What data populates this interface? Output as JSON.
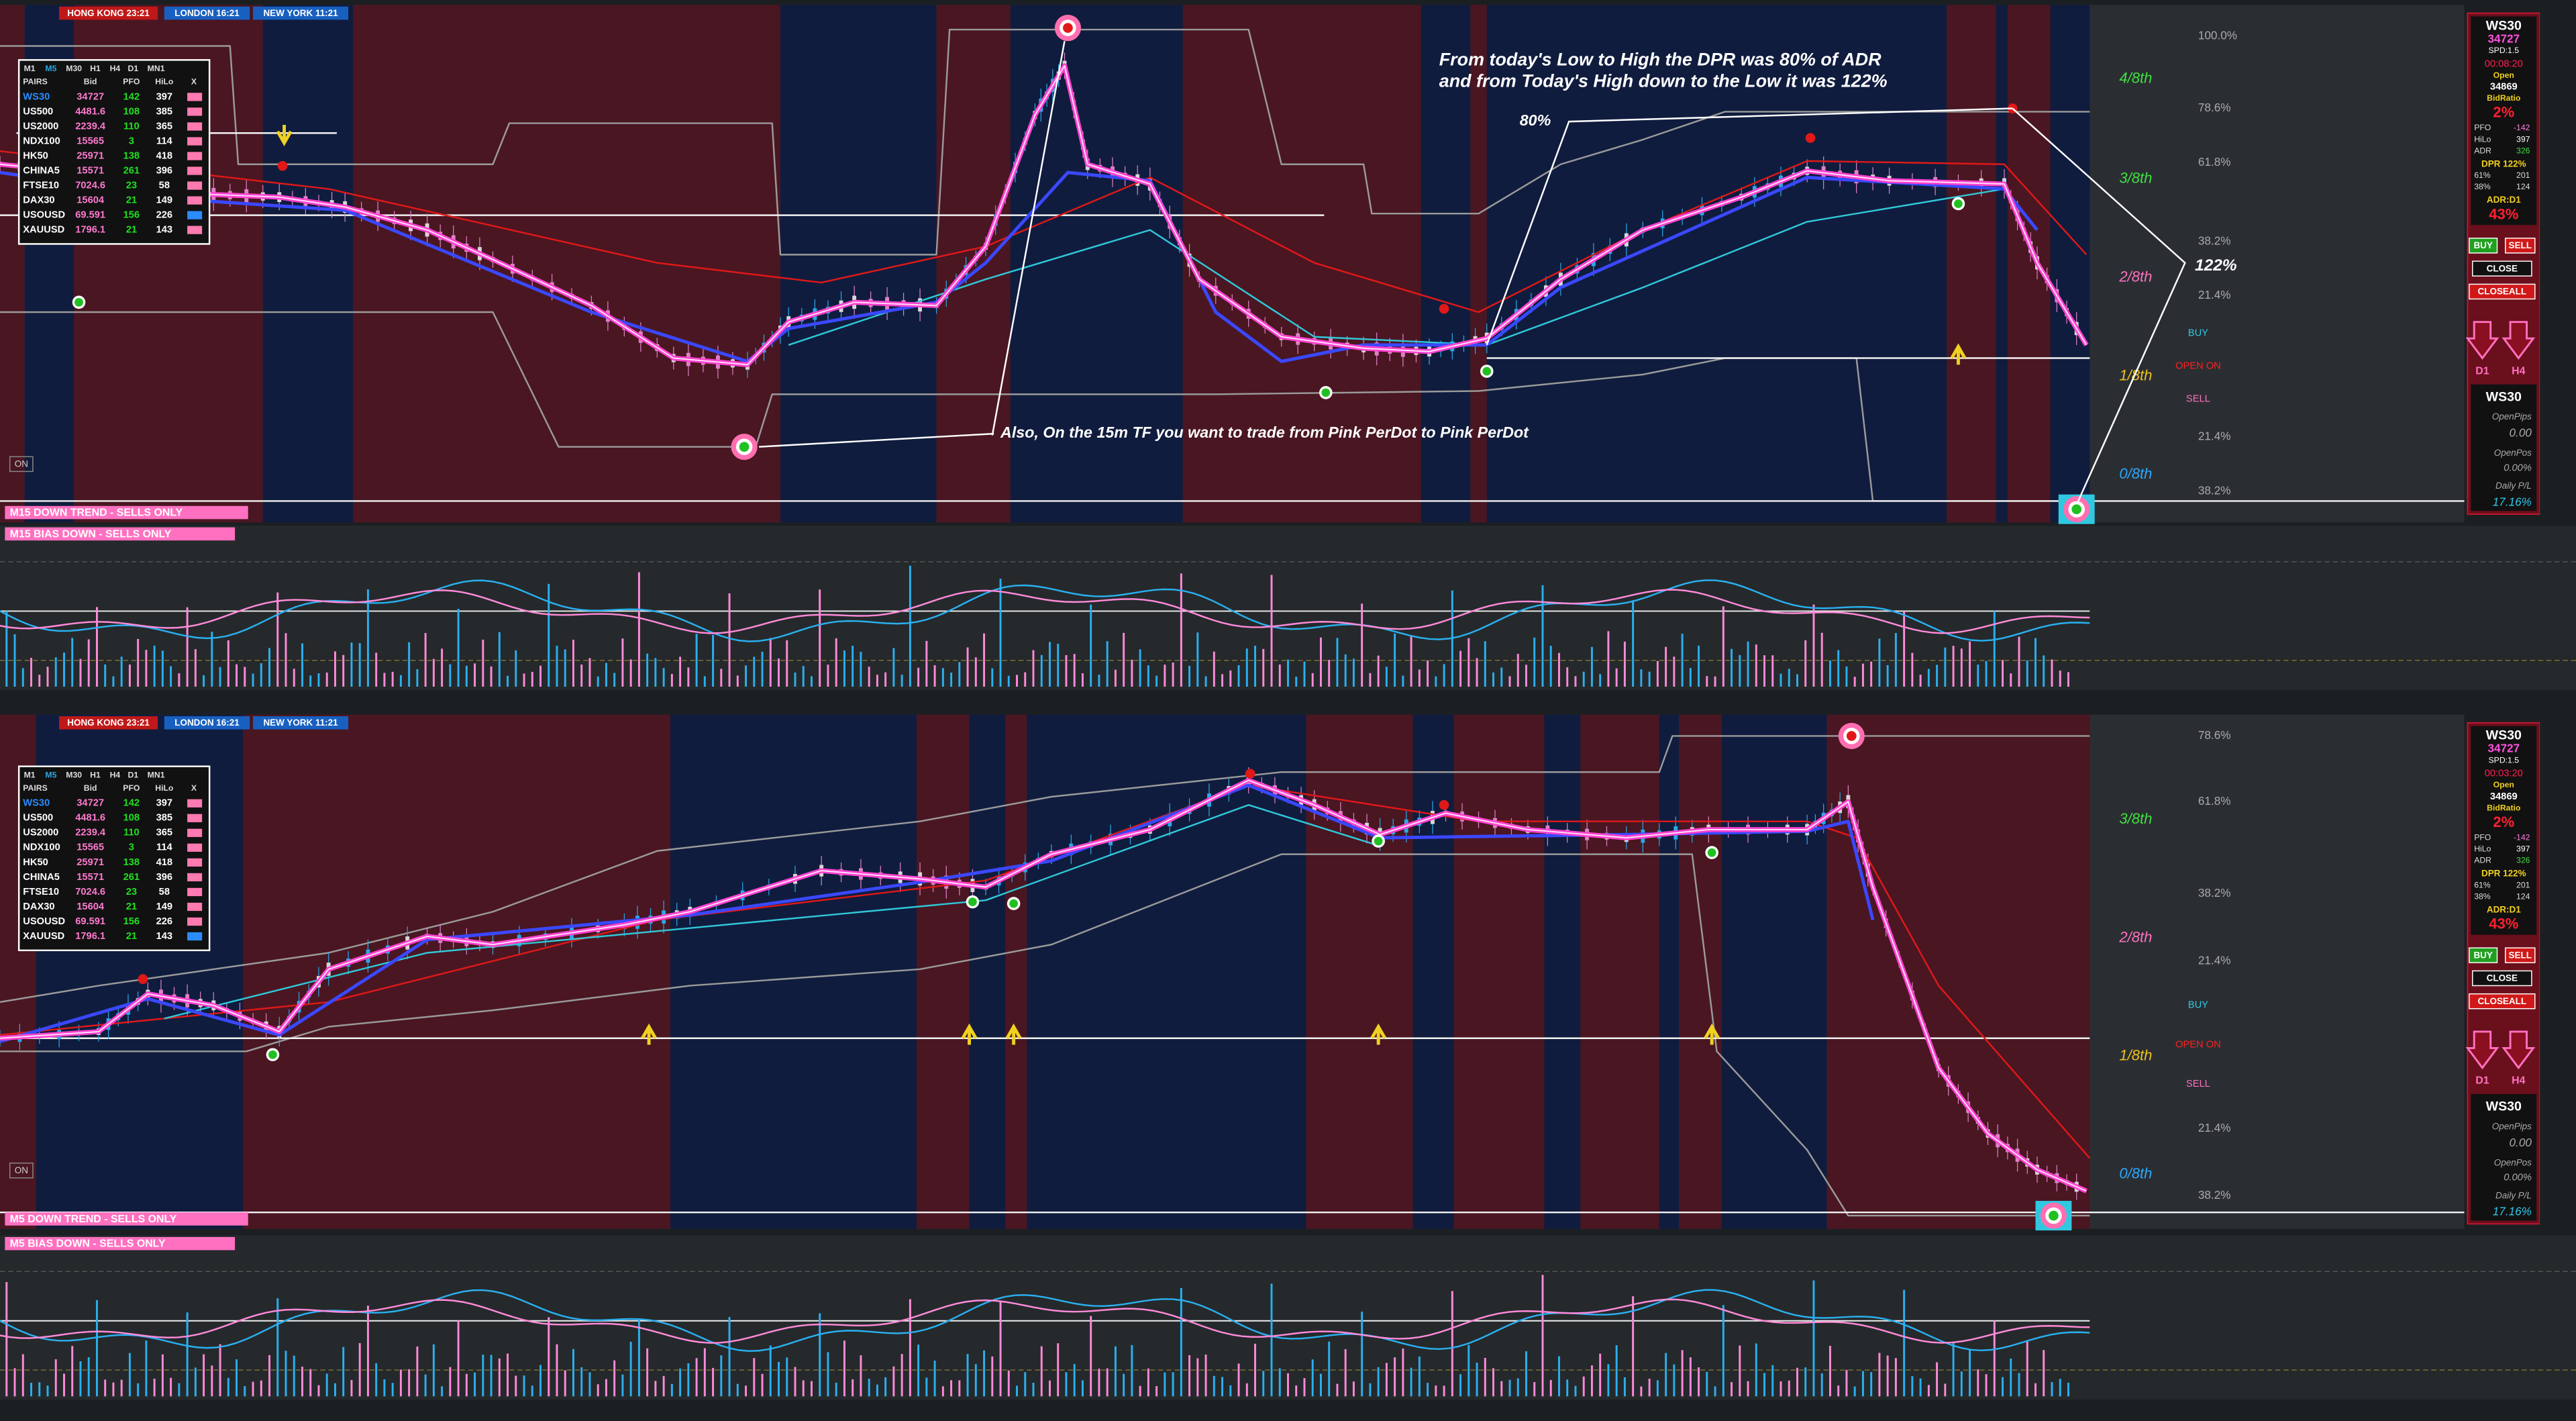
{
  "panels": [
    {
      "clocks": [
        "HONG KONG 23:21",
        "LONDON 16:21",
        "NEW YORK 11:21"
      ],
      "table": {
        "timeframes": [
          "M1",
          "M5",
          "M30",
          "H1",
          "H4",
          "D1",
          "MN1"
        ],
        "headers": [
          "PAIRS",
          "Bid",
          "PFO",
          "HiLo",
          "X"
        ],
        "rows": [
          [
            "WS30",
            "34727",
            "142",
            "397"
          ],
          [
            "US500",
            "4481.6",
            "108",
            "385"
          ],
          [
            "US2000",
            "2239.4",
            "110",
            "365"
          ],
          [
            "NDX100",
            "15565",
            "3",
            "114"
          ],
          [
            "HK50",
            "25971",
            "138",
            "418"
          ],
          [
            "CHINA5",
            "15571",
            "261",
            "396"
          ],
          [
            "FTSE10",
            "7024.6",
            "23",
            "58"
          ],
          [
            "DAX30",
            "15604",
            "21",
            "149"
          ],
          [
            "USOUSD",
            "69.591",
            "156",
            "226"
          ],
          [
            "XAUUSD",
            "1796.1",
            "21",
            "143"
          ]
        ]
      },
      "annotations": [
        "From today's Low to High the DPR was 80% of ADR",
        "and from Today's High down to the Low it was 122%",
        "80%",
        "122%",
        "Also, On the 15m TF you want to trade from Pink PerDot to Pink PerDot"
      ],
      "levels_pct": [
        "100.0%",
        "78.6%",
        "61.8%",
        "38.2%",
        "21.4%",
        "21.4%",
        "38.2%"
      ],
      "levels_eighth": [
        "4/8th",
        "3/8th",
        "2/8th",
        "1/8th",
        "0/8th"
      ],
      "signals": [
        "BUY",
        "OPEN ON",
        "SELL"
      ],
      "trend_label": "M15  DOWN TREND - SELLS ONLY",
      "bias_label": "M15  BIAS DOWN - SELLS ONLY",
      "on_label": "ON",
      "side": {
        "symbol": "WS30",
        "price": "34727",
        "spread": "SPD:1.5",
        "timer": "00:08:20",
        "open_label": "Open",
        "open": "34869",
        "ratio_label": "BidRatio",
        "ratio": "2%",
        "stats": [
          [
            "PFO",
            "-142"
          ],
          [
            "HiLo",
            "397"
          ],
          [
            "ADR",
            "326"
          ]
        ],
        "dpr": "DPR 122%",
        "fibs": [
          [
            "61%",
            "201"
          ],
          [
            "38%",
            "124"
          ]
        ],
        "adr_label": "ADR:D1",
        "adr": "43%",
        "buttons": [
          "BUY",
          "SELL",
          "CLOSE",
          "CLOSEALL"
        ],
        "arrows": [
          "D1",
          "H4"
        ],
        "account": [
          "WS30",
          "OpenPips",
          "0.00",
          "OpenPos",
          "0.00%",
          "Daily P/L",
          "17.16%"
        ]
      }
    },
    {
      "clocks": [
        "HONG KONG 23:21",
        "LONDON 16:21",
        "NEW YORK 11:21"
      ],
      "table": {
        "timeframes": [
          "M1",
          "M5",
          "M30",
          "H1",
          "H4",
          "D1",
          "MN1"
        ],
        "headers": [
          "PAIRS",
          "Bid",
          "PFO",
          "HiLo",
          "X"
        ],
        "rows": [
          [
            "WS30",
            "34727",
            "142",
            "397"
          ],
          [
            "US500",
            "4481.6",
            "108",
            "385"
          ],
          [
            "US2000",
            "2239.4",
            "110",
            "365"
          ],
          [
            "NDX100",
            "15565",
            "3",
            "114"
          ],
          [
            "HK50",
            "25971",
            "138",
            "418"
          ],
          [
            "CHINA5",
            "15571",
            "261",
            "396"
          ],
          [
            "FTSE10",
            "7024.6",
            "23",
            "58"
          ],
          [
            "DAX30",
            "15604",
            "21",
            "149"
          ],
          [
            "USOUSD",
            "69.591",
            "156",
            "226"
          ],
          [
            "XAUUSD",
            "1796.1",
            "21",
            "143"
          ]
        ]
      },
      "levels_pct": [
        "78.6%",
        "61.8%",
        "38.2%",
        "21.4%",
        "21.4%",
        "38.2%"
      ],
      "levels_eighth": [
        "3/8th",
        "2/8th",
        "1/8th",
        "0/8th"
      ],
      "signals": [
        "BUY",
        "OPEN ON",
        "SELL"
      ],
      "trend_label": "M5  DOWN TREND - SELLS ONLY",
      "bias_label": "M5  BIAS DOWN - SELLS ONLY",
      "on_label": "ON",
      "side": {
        "symbol": "WS30",
        "price": "34727",
        "spread": "SPD:1.5",
        "timer": "00:03:20",
        "open_label": "Open",
        "open": "34869",
        "ratio_label": "BidRatio",
        "ratio": "2%",
        "stats": [
          [
            "PFO",
            "-142"
          ],
          [
            "HiLo",
            "397"
          ],
          [
            "ADR",
            "326"
          ]
        ],
        "dpr": "DPR 122%",
        "fibs": [
          [
            "61%",
            "201"
          ],
          [
            "38%",
            "124"
          ]
        ],
        "adr_label": "ADR:D1",
        "adr": "43%",
        "buttons": [
          "BUY",
          "SELL",
          "CLOSE",
          "CLOSEALL"
        ],
        "arrows": [
          "D1",
          "H4"
        ],
        "account": [
          "WS30",
          "OpenPips",
          "0.00",
          "OpenPos",
          "0.00%",
          "Daily P/L",
          "17.16%"
        ]
      }
    }
  ]
}
